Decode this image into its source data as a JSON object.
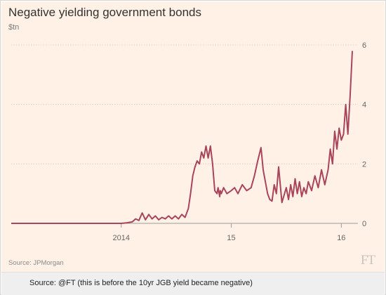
{
  "chart_data": {
    "type": "line",
    "title": "Negative yielding government bonds",
    "unit": "$tn",
    "ylim": [
      0,
      6
    ],
    "y_ticks": [
      "0",
      "2",
      "4",
      "6"
    ],
    "y_axis_side": "right",
    "grid": "horizontal-dotted",
    "x_ticks": [
      {
        "label": "2014",
        "x": 2014.0
      },
      {
        "label": "15",
        "x": 2015.0
      },
      {
        "label": "16",
        "x": 2016.0
      }
    ],
    "xlim": [
      2013.0,
      2016.1
    ],
    "series": [
      {
        "color": "#a8445b",
        "x": [
          2013.0,
          2013.3,
          2013.6,
          2013.8,
          2013.95,
          2014.0,
          2014.05,
          2014.1,
          2014.13,
          2014.16,
          2014.19,
          2014.22,
          2014.25,
          2014.28,
          2014.31,
          2014.34,
          2014.37,
          2014.4,
          2014.43,
          2014.46,
          2014.49,
          2014.52,
          2014.55,
          2014.58,
          2014.61,
          2014.63,
          2014.65,
          2014.67,
          2014.69,
          2014.71,
          2014.73,
          2014.75,
          2014.77,
          2014.79,
          2014.81,
          2014.83,
          2014.85,
          2014.87,
          2014.88,
          2014.895,
          2014.9,
          2014.91,
          2014.93,
          2014.96,
          2015.0,
          2015.03,
          2015.06,
          2015.1,
          2015.14,
          2015.18,
          2015.21,
          2015.24,
          2015.27,
          2015.29,
          2015.31,
          2015.33,
          2015.35,
          2015.37,
          2015.39,
          2015.41,
          2015.43,
          2015.46,
          2015.5,
          2015.52,
          2015.54,
          2015.56,
          2015.58,
          2015.6,
          2015.62,
          2015.64,
          2015.66,
          2015.68,
          2015.7,
          2015.73,
          2015.76,
          2015.79,
          2015.82,
          2015.85,
          2015.88,
          2015.9,
          2015.92,
          2015.94,
          2015.96,
          2015.98,
          2016.0,
          2016.02,
          2016.04,
          2016.06,
          2016.08,
          2016.1
        ],
        "y": [
          0.0,
          0.0,
          0.0,
          0.0,
          0.0,
          0.0,
          0.02,
          0.05,
          0.15,
          0.1,
          0.35,
          0.12,
          0.3,
          0.15,
          0.25,
          0.12,
          0.2,
          0.15,
          0.25,
          0.15,
          0.25,
          0.15,
          0.3,
          0.2,
          0.5,
          1.0,
          1.6,
          1.9,
          2.1,
          2.0,
          2.4,
          2.2,
          2.6,
          2.2,
          2.6,
          2.0,
          1.1,
          1.0,
          1.2,
          0.9,
          1.1,
          1.0,
          1.2,
          1.0,
          1.1,
          1.2,
          1.0,
          1.3,
          1.1,
          1.2,
          1.6,
          2.1,
          2.55,
          1.8,
          1.4,
          1.0,
          0.8,
          0.75,
          1.3,
          1.0,
          1.9,
          0.7,
          1.2,
          0.8,
          1.3,
          0.9,
          1.5,
          1.0,
          1.4,
          0.9,
          1.2,
          1.0,
          1.4,
          1.1,
          1.6,
          1.2,
          1.8,
          1.3,
          1.8,
          2.5,
          2.0,
          3.1,
          2.5,
          3.2,
          2.8,
          3.0,
          4.0,
          3.0,
          4.3,
          5.8
        ]
      }
    ]
  },
  "source_note": "Source: JPMorgan",
  "brand": "FT",
  "caption": "Source: @FT (this is before the 10yr JGB yield became negative)"
}
